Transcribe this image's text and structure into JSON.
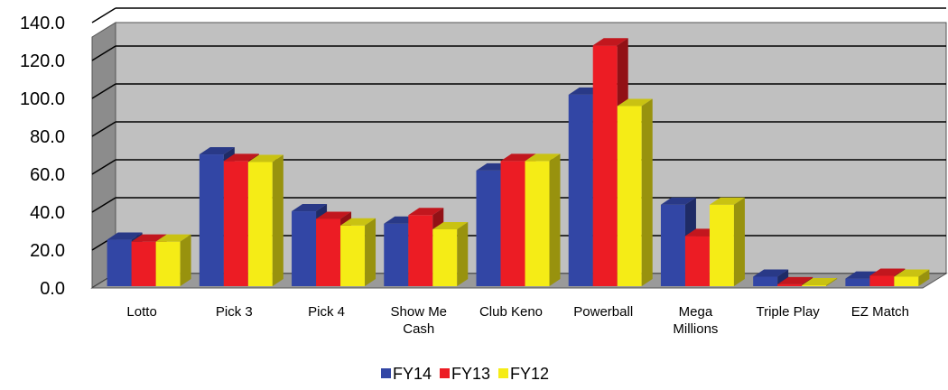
{
  "chart_data": {
    "type": "bar",
    "title": "",
    "xlabel": "",
    "ylabel": "",
    "ylim": [
      0,
      140
    ],
    "y_ticks": [
      "0.0",
      "20.0",
      "40.0",
      "60.0",
      "80.0",
      "100.0",
      "120.0",
      "140.0"
    ],
    "grid": true,
    "three_d": true,
    "legend_position": "bottom",
    "categories": [
      [
        "Lotto"
      ],
      [
        "Pick 3"
      ],
      [
        "Pick 4"
      ],
      [
        "Show Me",
        "Cash"
      ],
      [
        "Club Keno"
      ],
      [
        "Powerball"
      ],
      [
        "Mega",
        "Millions"
      ],
      [
        "Triple Play"
      ],
      [
        "EZ Match"
      ]
    ],
    "series": [
      {
        "name": "FY14",
        "color": "#3246a5",
        "values": [
          24.5,
          69.5,
          39.5,
          33,
          61,
          101,
          43,
          5,
          4
        ]
      },
      {
        "name": "FY13",
        "color": "#ec1c24",
        "values": [
          23.5,
          66,
          35.5,
          37.5,
          66,
          127,
          26.5,
          1,
          5.5
        ]
      },
      {
        "name": "FY12",
        "color": "#f5ec16",
        "values": [
          23.5,
          65.5,
          32,
          30,
          66,
          95,
          43,
          0.5,
          5
        ]
      }
    ]
  }
}
